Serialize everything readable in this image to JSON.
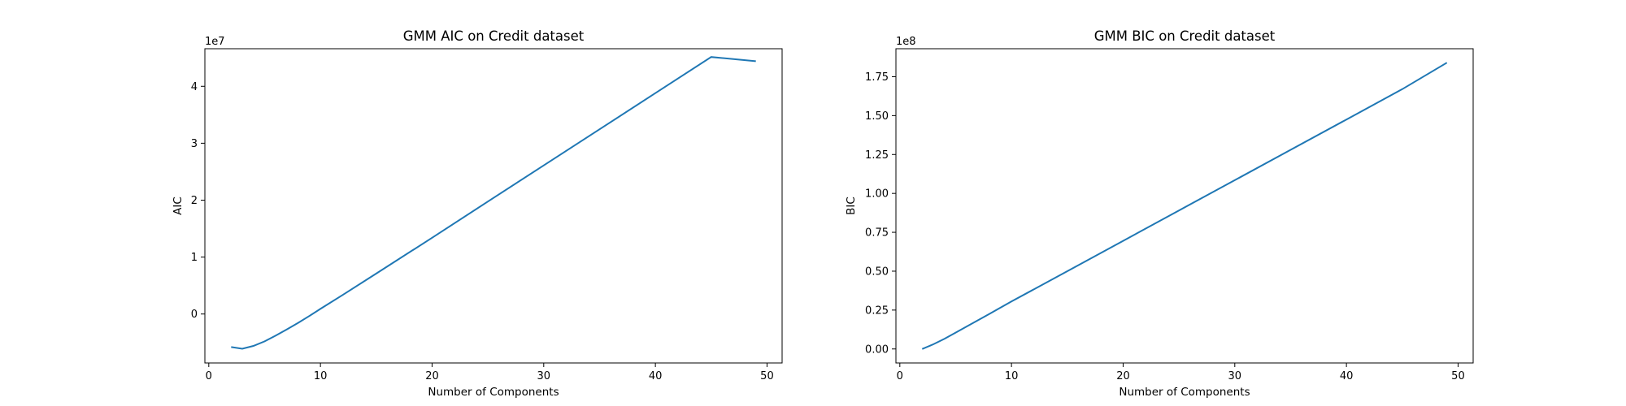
{
  "chart_data": [
    {
      "type": "line",
      "title": "GMM AIC on Credit dataset",
      "xlabel": "Number of Components",
      "ylabel": "AIC",
      "offset_label": "1e7",
      "xlim": [
        -0.35,
        51.35
      ],
      "ylim": [
        -0.86,
        4.66
      ],
      "xticks": [
        0,
        10,
        20,
        30,
        40,
        50
      ],
      "yticks": [
        0,
        1,
        2,
        3,
        4
      ],
      "xticklabels": [
        "0",
        "10",
        "20",
        "30",
        "40",
        "50"
      ],
      "yticklabels": [
        "0",
        "1",
        "2",
        "3",
        "4"
      ],
      "grid": false,
      "series_color": "#1f77b4",
      "series": [
        {
          "x": [
            2,
            3,
            4,
            5,
            6,
            7,
            8,
            9,
            10,
            12,
            15,
            20,
            25,
            30,
            35,
            40,
            45,
            49
          ],
          "values": [
            -0.58,
            -0.61,
            -0.56,
            -0.48,
            -0.38,
            -0.27,
            -0.155,
            -0.035,
            0.09,
            0.335,
            0.71,
            1.34,
            1.975,
            2.61,
            3.245,
            3.88,
            4.515,
            4.44
          ]
        }
      ]
    },
    {
      "type": "line",
      "title": "GMM BIC on Credit dataset",
      "xlabel": "Number of Components",
      "ylabel": "BIC",
      "offset_label": "1e8",
      "xlim": [
        -0.35,
        51.35
      ],
      "ylim": [
        -0.09,
        1.93
      ],
      "xticks": [
        0,
        10,
        20,
        30,
        40,
        50
      ],
      "yticks": [
        0.0,
        0.25,
        0.5,
        0.75,
        1.0,
        1.25,
        1.5,
        1.75
      ],
      "xticklabels": [
        "0",
        "10",
        "20",
        "30",
        "40",
        "50"
      ],
      "yticklabels": [
        "0.00",
        "0.25",
        "0.50",
        "0.75",
        "1.00",
        "1.25",
        "1.50",
        "1.75"
      ],
      "grid": false,
      "series_color": "#1f77b4",
      "series": [
        {
          "x": [
            2,
            3,
            4,
            5,
            6,
            8,
            10,
            15,
            20,
            25,
            30,
            35,
            40,
            45,
            49
          ],
          "values": [
            0.0,
            0.03,
            0.065,
            0.105,
            0.145,
            0.225,
            0.305,
            0.5,
            0.695,
            0.89,
            1.085,
            1.28,
            1.475,
            1.67,
            1.84
          ]
        }
      ]
    }
  ]
}
